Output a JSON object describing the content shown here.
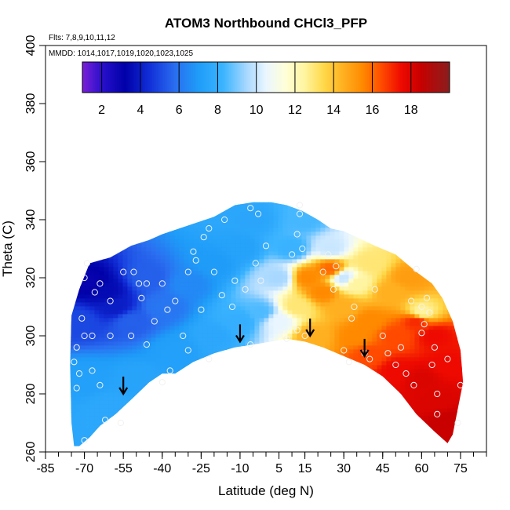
{
  "chart_data": {
    "type": "heatmap",
    "title": "ATOM3 Northbound CHCl3_PFP",
    "notes": {
      "flights": "Flts: 7,8,9,10,11,12",
      "dates": "MMDD: 1014,1017,1019,1020,1023,1025"
    },
    "xlabel": "Latitude (deg N)",
    "ylabel": "Theta (C)",
    "xlim": [
      -85,
      85
    ],
    "ylim": [
      260,
      400
    ],
    "x_ticks": [
      -85,
      -70,
      -55,
      -40,
      -25,
      -10,
      5,
      15,
      30,
      45,
      60,
      75
    ],
    "y_ticks": [
      260,
      280,
      300,
      320,
      340,
      360,
      380,
      400
    ],
    "colorbar": {
      "range": [
        1,
        20
      ],
      "ticks": [
        2,
        4,
        6,
        8,
        10,
        12,
        14,
        16,
        18
      ],
      "stops": [
        {
          "v": 1,
          "c": "#7b1fd6"
        },
        {
          "v": 2,
          "c": "#2a10cc"
        },
        {
          "v": 3.2,
          "c": "#0000a8"
        },
        {
          "v": 4.5,
          "c": "#1230d8"
        },
        {
          "v": 5.8,
          "c": "#2a6ef0"
        },
        {
          "v": 7,
          "c": "#1e9cf8"
        },
        {
          "v": 8.3,
          "c": "#3cb4ff"
        },
        {
          "v": 9.5,
          "c": "#a8d8ff"
        },
        {
          "v": 10.5,
          "c": "#eaf6ff"
        },
        {
          "v": 11.5,
          "c": "#ffffd8"
        },
        {
          "v": 12.5,
          "c": "#fff4a0"
        },
        {
          "v": 13.5,
          "c": "#ffd84a"
        },
        {
          "v": 14.5,
          "c": "#ffb020"
        },
        {
          "v": 15.5,
          "c": "#ff8a00"
        },
        {
          "v": 16.5,
          "c": "#ff4a00"
        },
        {
          "v": 17.5,
          "c": "#ee0a00"
        },
        {
          "v": 18.5,
          "c": "#c80000"
        },
        {
          "v": 20,
          "c": "#8a1e1e"
        }
      ]
    },
    "boundary": {
      "top": [
        [
          -75,
          307
        ],
        [
          -72,
          316
        ],
        [
          -68,
          325
        ],
        [
          -60,
          327
        ],
        [
          -52,
          331
        ],
        [
          -45,
          333
        ],
        [
          -40,
          335
        ],
        [
          -30,
          338
        ],
        [
          -20,
          341
        ],
        [
          -12,
          345
        ],
        [
          -5,
          346
        ],
        [
          2,
          346
        ],
        [
          8,
          345
        ],
        [
          14,
          343
        ],
        [
          20,
          340
        ],
        [
          25,
          337
        ],
        [
          30,
          336
        ],
        [
          35,
          334
        ],
        [
          42,
          331
        ],
        [
          50,
          328
        ],
        [
          58,
          322
        ],
        [
          64,
          318
        ],
        [
          68,
          313
        ],
        [
          72,
          305
        ],
        [
          75,
          295
        ],
        [
          76,
          284
        ]
      ],
      "bottom": [
        [
          76,
          284
        ],
        [
          74,
          275
        ],
        [
          72,
          266
        ],
        [
          70,
          263
        ],
        [
          65,
          267
        ],
        [
          58,
          273
        ],
        [
          52,
          280
        ],
        [
          45,
          286
        ],
        [
          38,
          290
        ],
        [
          30,
          293
        ],
        [
          22,
          296
        ],
        [
          15,
          298
        ],
        [
          8,
          299
        ],
        [
          2,
          298
        ],
        [
          -5,
          297
        ],
        [
          -12,
          296
        ],
        [
          -20,
          294
        ],
        [
          -28,
          291
        ],
        [
          -35,
          287
        ],
        [
          -40,
          287
        ],
        [
          -45,
          284
        ],
        [
          -52,
          278
        ],
        [
          -58,
          273
        ],
        [
          -64,
          269
        ],
        [
          -68,
          265
        ],
        [
          -72,
          262
        ],
        [
          -74,
          262
        ],
        [
          -75,
          270
        ],
        [
          -75.5,
          290
        ],
        [
          -75,
          307
        ]
      ]
    },
    "field_anchors": [
      {
        "lat": -68,
        "theta": 318,
        "v": 3
      },
      {
        "lat": -62,
        "theta": 315,
        "v": 3.5
      },
      {
        "lat": -58,
        "theta": 310,
        "v": 4
      },
      {
        "lat": -72,
        "theta": 305,
        "v": 5
      },
      {
        "lat": -52,
        "theta": 305,
        "v": 5.5
      },
      {
        "lat": -45,
        "theta": 320,
        "v": 5.5
      },
      {
        "lat": -40,
        "theta": 310,
        "v": 6
      },
      {
        "lat": -30,
        "theta": 318,
        "v": 6.5
      },
      {
        "lat": -20,
        "theta": 325,
        "v": 7
      },
      {
        "lat": -10,
        "theta": 330,
        "v": 7.3
      },
      {
        "lat": -5,
        "theta": 340,
        "v": 7.5
      },
      {
        "lat": -70,
        "theta": 285,
        "v": 7.2
      },
      {
        "lat": -60,
        "theta": 275,
        "v": 7.6
      },
      {
        "lat": -50,
        "theta": 285,
        "v": 7.4
      },
      {
        "lat": -35,
        "theta": 295,
        "v": 7.2
      },
      {
        "lat": -20,
        "theta": 300,
        "v": 7.6
      },
      {
        "lat": -10,
        "theta": 305,
        "v": 8
      },
      {
        "lat": -2,
        "theta": 308,
        "v": 8.5
      },
      {
        "lat": 5,
        "theta": 305,
        "v": 10.5
      },
      {
        "lat": 5,
        "theta": 320,
        "v": 9.5
      },
      {
        "lat": 10,
        "theta": 330,
        "v": 8.2
      },
      {
        "lat": 15,
        "theta": 340,
        "v": 8.4
      },
      {
        "lat": 12,
        "theta": 310,
        "v": 13
      },
      {
        "lat": 18,
        "theta": 300,
        "v": 14.5
      },
      {
        "lat": 16,
        "theta": 320,
        "v": 15.5
      },
      {
        "lat": 25,
        "theta": 323,
        "v": 16
      },
      {
        "lat": 22,
        "theta": 315,
        "v": 15.5
      },
      {
        "lat": 30,
        "theta": 320,
        "v": 10
      },
      {
        "lat": 25,
        "theta": 330,
        "v": 10
      },
      {
        "lat": 30,
        "theta": 310,
        "v": 14.5
      },
      {
        "lat": 35,
        "theta": 318,
        "v": 12.5
      },
      {
        "lat": 35,
        "theta": 300,
        "v": 15.5
      },
      {
        "lat": 40,
        "theta": 325,
        "v": 13
      },
      {
        "lat": 40,
        "theta": 305,
        "v": 15.5
      },
      {
        "lat": 40,
        "theta": 293,
        "v": 16.5
      },
      {
        "lat": 48,
        "theta": 315,
        "v": 14.5
      },
      {
        "lat": 50,
        "theta": 300,
        "v": 16.5
      },
      {
        "lat": 50,
        "theta": 288,
        "v": 17.5
      },
      {
        "lat": 55,
        "theta": 320,
        "v": 15
      },
      {
        "lat": 58,
        "theta": 305,
        "v": 17
      },
      {
        "lat": 60,
        "theta": 308,
        "v": 12.5
      },
      {
        "lat": 60,
        "theta": 285,
        "v": 18
      },
      {
        "lat": 65,
        "theta": 300,
        "v": 17.5
      },
      {
        "lat": 65,
        "theta": 278,
        "v": 18
      },
      {
        "lat": 70,
        "theta": 290,
        "v": 17.5
      },
      {
        "lat": 70,
        "theta": 270,
        "v": 18.5
      }
    ],
    "sample_points": [
      [
        -69,
        325
      ],
      [
        -70,
        320
      ],
      [
        -66,
        315
      ],
      [
        -64,
        318
      ],
      [
        -60,
        312
      ],
      [
        -55,
        322
      ],
      [
        -51,
        322
      ],
      [
        -49,
        318
      ],
      [
        -48,
        313
      ],
      [
        -46,
        318
      ],
      [
        -43,
        305
      ],
      [
        -40,
        318
      ],
      [
        -38,
        309
      ],
      [
        -35,
        312
      ],
      [
        -32,
        300
      ],
      [
        -30,
        322
      ],
      [
        -28,
        329
      ],
      [
        -27,
        326
      ],
      [
        -25,
        309
      ],
      [
        -24,
        334
      ],
      [
        -22,
        292
      ],
      [
        -20,
        322
      ],
      [
        -17,
        314
      ],
      [
        -13,
        310
      ],
      [
        -12,
        319
      ],
      [
        -8,
        316
      ],
      [
        -6,
        297
      ],
      [
        -4,
        325
      ],
      [
        -2,
        319
      ],
      [
        0,
        331
      ],
      [
        -3,
        342
      ],
      [
        -6,
        344
      ],
      [
        -16,
        340
      ],
      [
        -22,
        337
      ],
      [
        -74,
        291
      ],
      [
        -71,
        306
      ],
      [
        -70,
        300
      ],
      [
        -67,
        288
      ],
      [
        -67,
        300
      ],
      [
        -64,
        283
      ],
      [
        -62,
        271
      ],
      [
        -60,
        300
      ],
      [
        -56,
        270
      ],
      [
        -52,
        300
      ],
      [
        -46,
        297
      ],
      [
        -40,
        284
      ],
      [
        -37,
        288
      ],
      [
        -30,
        295
      ],
      [
        -73,
        296
      ],
      [
        -73,
        282
      ],
      [
        -72,
        287
      ],
      [
        -70,
        264
      ],
      [
        -71,
        260
      ],
      [
        13,
        345
      ],
      [
        13,
        342
      ],
      [
        12,
        335
      ],
      [
        14,
        330
      ],
      [
        10,
        328
      ],
      [
        12,
        302
      ],
      [
        15,
        300
      ],
      [
        8,
        299
      ],
      [
        22,
        322
      ],
      [
        24,
        328
      ],
      [
        26,
        316
      ],
      [
        27,
        324
      ],
      [
        30,
        295
      ],
      [
        32,
        291
      ],
      [
        33,
        306
      ],
      [
        34,
        310
      ],
      [
        38,
        294
      ],
      [
        40,
        292
      ],
      [
        42,
        316
      ],
      [
        45,
        300
      ],
      [
        47,
        294
      ],
      [
        50,
        290
      ],
      [
        52,
        296
      ],
      [
        54,
        287
      ],
      [
        56,
        312
      ],
      [
        57,
        283
      ],
      [
        58,
        323
      ],
      [
        60,
        310
      ],
      [
        60,
        301
      ],
      [
        61,
        304
      ],
      [
        62,
        313
      ],
      [
        63,
        308
      ],
      [
        64,
        290
      ],
      [
        65,
        296
      ],
      [
        66,
        280
      ],
      [
        66,
        273
      ],
      [
        70,
        292
      ],
      [
        74,
        270
      ],
      [
        75,
        283
      ]
    ],
    "arrows": [
      {
        "lat": -55,
        "theta": 280
      },
      {
        "lat": -10,
        "theta": 298
      },
      {
        "lat": 17,
        "theta": 300
      },
      {
        "lat": 38,
        "theta": 293
      }
    ]
  }
}
